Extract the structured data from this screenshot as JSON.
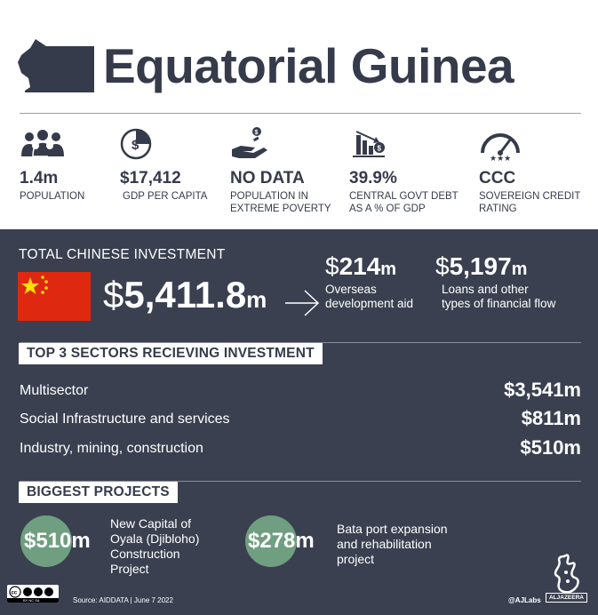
{
  "header": {
    "title": "Equatorial Guinea",
    "map_icon": "equatorial-guinea-map-icon"
  },
  "stats": [
    {
      "icon": "population-icon",
      "value": "1.4m",
      "label": "POPULATION",
      "label2": ""
    },
    {
      "icon": "gdp-per-capita-icon",
      "value": "$17,412",
      "label": "GDP PER CAPITA",
      "label2": ""
    },
    {
      "icon": "poverty-hand-icon",
      "value": "NO DATA",
      "label": "POPULATION IN",
      "label2": "EXTREME POVERTY"
    },
    {
      "icon": "debt-chart-icon",
      "value": "39.9%",
      "label": "CENTRAL GOVT DEBT",
      "label2": "AS A % OF GDP"
    },
    {
      "icon": "credit-gauge-icon",
      "value": "CCC",
      "label": "SOVEREIGN CREDIT",
      "label2": "RATING"
    }
  ],
  "investment": {
    "label": "TOTAL CHINESE INVESTMENT",
    "flag_icon": "china-flag-icon",
    "total_dollar": "$",
    "total_number": "5,411.8",
    "total_unit": "m",
    "oda": {
      "dollar": "$",
      "number": "214",
      "unit": "m",
      "desc1": "Overseas",
      "desc2": "development aid"
    },
    "loans": {
      "dollar": "$",
      "number": "5,197",
      "unit": "m",
      "desc1": "Loans and other",
      "desc2": "types of financial flow"
    }
  },
  "sectors": {
    "heading": "TOP 3 SECTORS RECIEVING INVESTMENT",
    "rows": [
      {
        "name": "Multisector",
        "amount": "$3,541m"
      },
      {
        "name": "Social Infrastructure and services",
        "amount": "$811m"
      },
      {
        "name": "Industry, mining, construction",
        "amount": "$510m"
      }
    ]
  },
  "projects": {
    "heading": "BIGGEST PROJECTS",
    "items": [
      {
        "amount": "$510m",
        "lines": [
          "New Capital of",
          "Oyala (Djibloho)",
          "Construction",
          "Project"
        ]
      },
      {
        "amount": "$278m",
        "lines": [
          "Bata port expansion",
          "and rehabilitation",
          "project"
        ]
      }
    ]
  },
  "footer": {
    "license_icon": "creative-commons-icon",
    "license_text": "BY NC SA",
    "source": "Source: AIDDATA  |  June 7 2022",
    "handle": "@AJLabs",
    "logo_icon": "al-jazeera-logo-icon",
    "logo_text": "ALJAZEERA"
  },
  "colors": {
    "dark_bg": "#3a4050",
    "text_dark": "#353b4a",
    "china_red": "#de2910",
    "china_yellow": "#ffde00",
    "project_circle": "#6f9f80"
  }
}
